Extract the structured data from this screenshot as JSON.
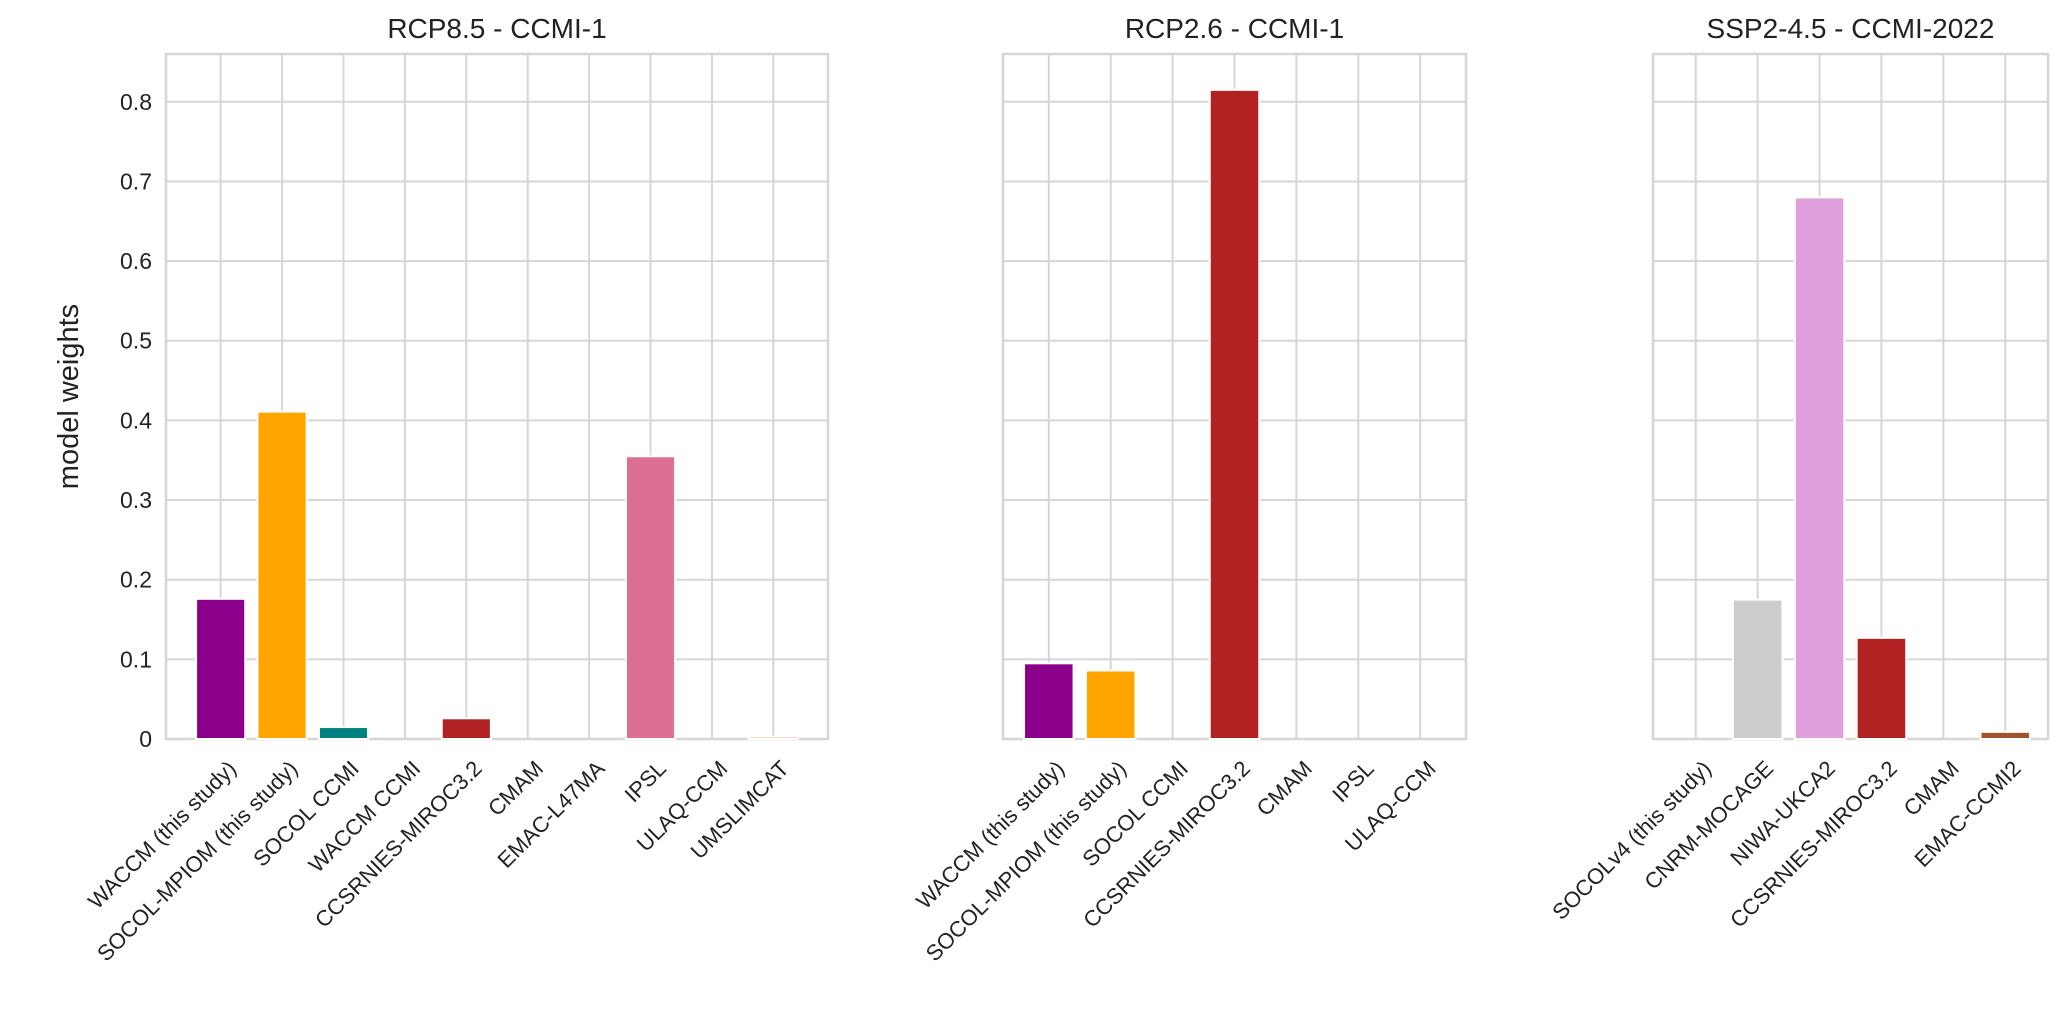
{
  "chart_data": [
    {
      "type": "bar",
      "title": "RCP8.5 - CCMI-1",
      "ylabel": "model weights",
      "xlabel": "",
      "ylim": [
        0,
        0.86
      ],
      "yticks": [
        0,
        0.1,
        0.2,
        0.3,
        0.4,
        0.5,
        0.6,
        0.7,
        0.8
      ],
      "ytick_labels": [
        "0",
        "0.1",
        "0.2",
        "0.3",
        "0.4",
        "0.5",
        "0.6",
        "0.7",
        "0.8"
      ],
      "grid": true,
      "categories": [
        "WACCM (this study)",
        "SOCOL-MPIOM (this study)",
        "SOCOL CCMI",
        "WACCM CCMI",
        "CCSRNIES-MIROC3.2",
        "CMAM",
        "EMAC-L47MA",
        "IPSL",
        "ULAQ-CCM",
        "UMSLIMCAT"
      ],
      "values": [
        0.176,
        0.411,
        0.015,
        0.0,
        0.026,
        0.0,
        0.0,
        0.355,
        0.0,
        0.003
      ],
      "colors": [
        "#8b008b",
        "#ffa500",
        "#008080",
        "#4682b4",
        "#b22222",
        "#708090",
        "#6b8e23",
        "#db7093",
        "#2e8b57",
        "#d2967a"
      ]
    },
    {
      "type": "bar",
      "title": "RCP2.6 - CCMI-1",
      "ylabel": "",
      "xlabel": "",
      "ylim": [
        0,
        0.86
      ],
      "yticks": [
        0,
        0.1,
        0.2,
        0.3,
        0.4,
        0.5,
        0.6,
        0.7,
        0.8
      ],
      "grid": true,
      "categories": [
        "WACCM (this study)",
        "SOCOL-MPIOM (this study)",
        "SOCOL CCMI",
        "CCSRNIES-MIROC3.2",
        "CMAM",
        "IPSL",
        "ULAQ-CCM"
      ],
      "values": [
        0.095,
        0.086,
        0.0,
        0.815,
        0.0,
        0.0,
        0.0
      ],
      "colors": [
        "#8b008b",
        "#ffa500",
        "#008080",
        "#b22222",
        "#708090",
        "#db7093",
        "#2e8b57"
      ]
    },
    {
      "type": "bar",
      "title": "SSP2-4.5 - CCMI-2022",
      "ylabel": "",
      "xlabel": "",
      "ylim": [
        0,
        0.86
      ],
      "yticks": [
        0,
        0.1,
        0.2,
        0.3,
        0.4,
        0.5,
        0.6,
        0.7,
        0.8
      ],
      "grid": true,
      "categories": [
        "SOCOLv4 (this study)",
        "CNRM-MOCAGE",
        "NIWA-UKCA2",
        "CCSRNIES-MIROC3.2",
        "CMAM",
        "EMAC-CCMI2"
      ],
      "values": [
        0.0,
        0.175,
        0.68,
        0.127,
        0.0,
        0.009
      ],
      "colors": [
        "#4169e1",
        "#cccccc",
        "#dda0dd",
        "#b22222",
        "#708090",
        "#a0522d"
      ]
    }
  ]
}
